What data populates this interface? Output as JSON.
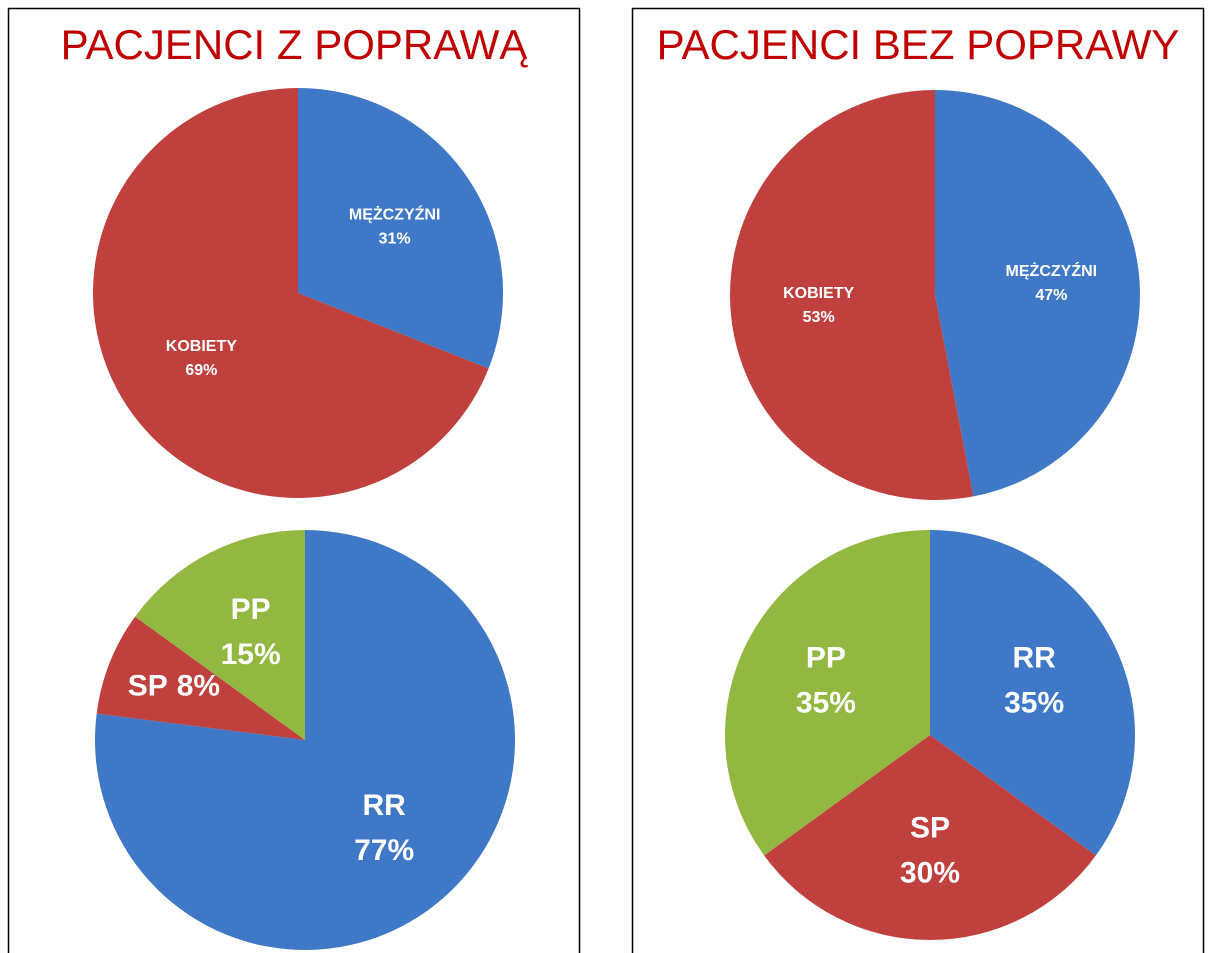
{
  "chart_data": [
    {
      "type": "pie",
      "title": "PACJENCI Z POPRAWĄ",
      "categories": [
        "MĘŻCZYŹNI",
        "KOBIETY"
      ],
      "values": [
        31,
        69
      ],
      "value_labels": [
        "31%",
        "69%"
      ],
      "colors": [
        "#3f78c6",
        "#c0403d"
      ]
    },
    {
      "type": "pie",
      "categories": [
        "RR",
        "SP",
        "PP"
      ],
      "values": [
        77,
        8,
        15
      ],
      "value_labels": [
        "77%",
        "8%",
        "15%"
      ],
      "colors": [
        "#3f78c6",
        "#c0403d",
        "#92b842"
      ]
    },
    {
      "type": "pie",
      "title": "PACJENCI BEZ POPRAWY",
      "categories": [
        "MĘŻCZYŹNI",
        "KOBIETY"
      ],
      "values": [
        47,
        53
      ],
      "value_labels": [
        "47%",
        "53%"
      ],
      "colors": [
        "#3f78c6",
        "#c0403d"
      ]
    },
    {
      "type": "pie",
      "categories": [
        "RR",
        "SP",
        "PP"
      ],
      "values": [
        35,
        30,
        35
      ],
      "value_labels": [
        "35%",
        "30%",
        "35%"
      ],
      "colors": [
        "#3f78c6",
        "#c0403d",
        "#92b842"
      ]
    }
  ]
}
